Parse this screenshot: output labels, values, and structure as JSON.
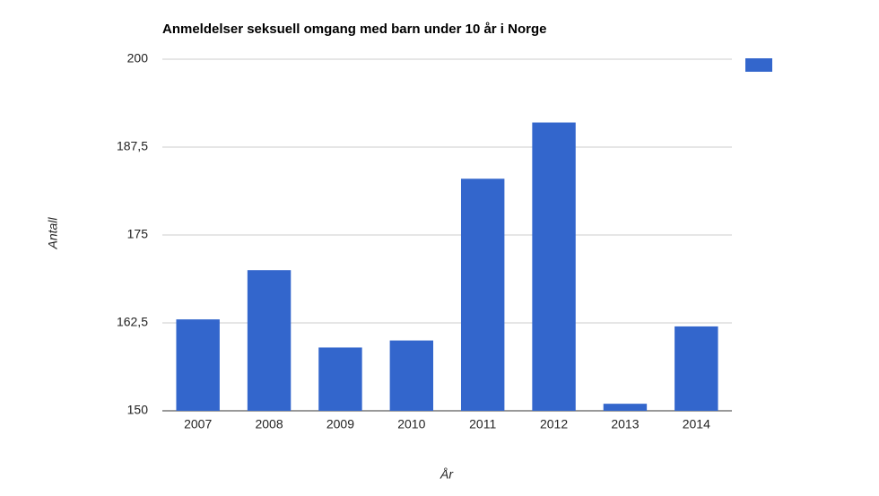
{
  "chart_data": {
    "type": "bar",
    "title": "Anmeldelser seksuell omgang med barn under 10 år i Norge",
    "x_label": "År",
    "y_label": "Antall",
    "categories": [
      "2007",
      "2008",
      "2009",
      "2010",
      "2011",
      "2012",
      "2013",
      "2014"
    ],
    "values": [
      163,
      170,
      159,
      160,
      183,
      191,
      151,
      162
    ],
    "color": "#3366cc",
    "ylim": [
      150,
      200
    ],
    "yticks": [
      150,
      {
        "value": 162.5,
        "label": "162,5"
      },
      175,
      {
        "value": 187.5,
        "label": "187,5"
      },
      200
    ],
    "grid": true
  }
}
